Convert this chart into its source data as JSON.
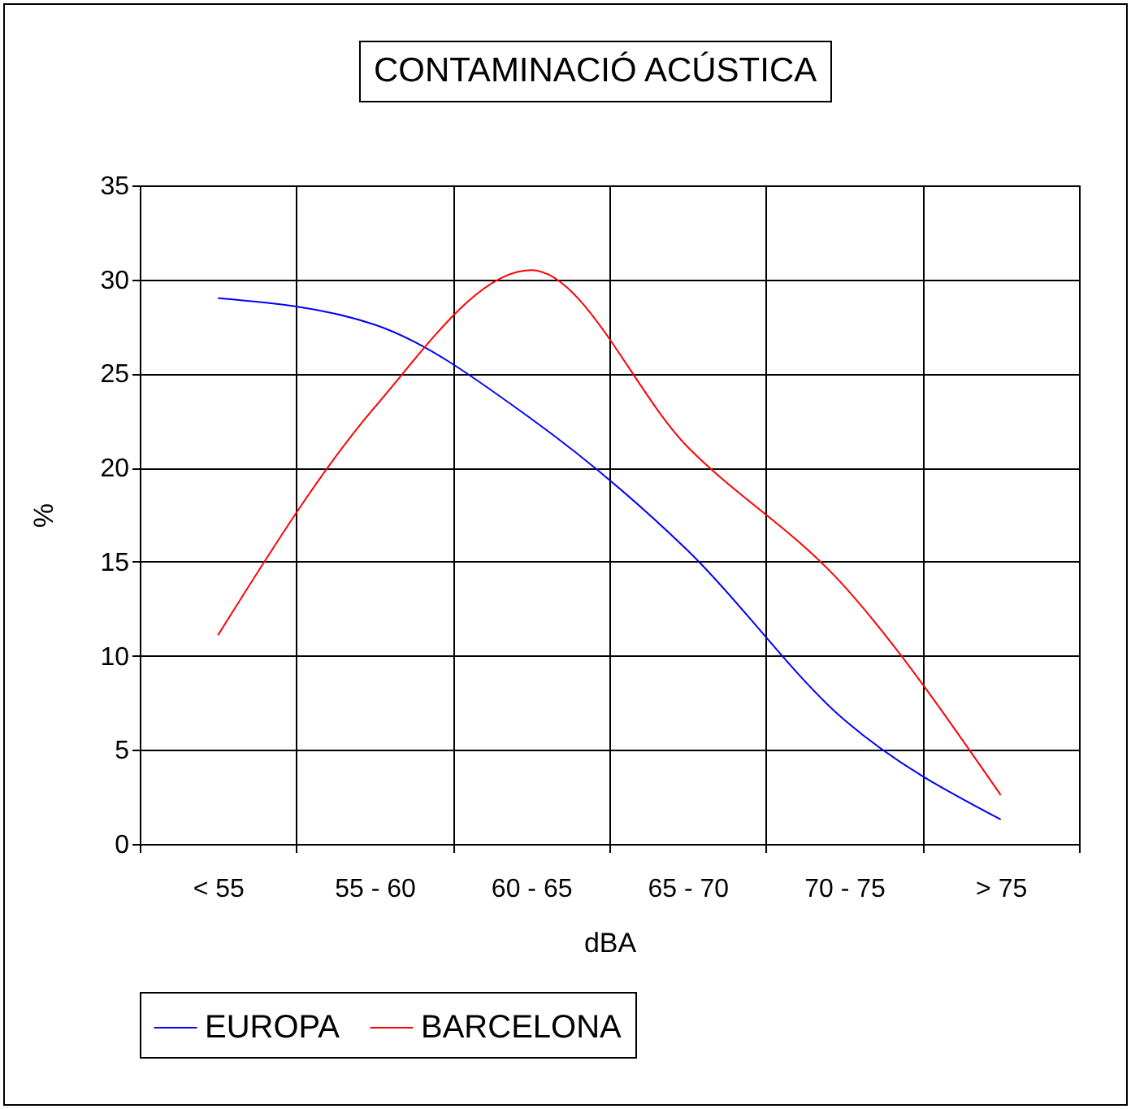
{
  "chart_data": {
    "type": "line",
    "title": "CONTAMINACIÓ ACÚSTICA",
    "xlabel": "dBA",
    "ylabel": "%",
    "categories": [
      "< 55",
      "55 - 60",
      "60 - 65",
      "65 - 70",
      "70 - 75",
      "> 75"
    ],
    "series": [
      {
        "name": "EUROPA",
        "color": "#0000ff",
        "values": [
          29.0,
          27.6,
          22.6,
          15.6,
          6.6,
          1.3
        ]
      },
      {
        "name": "BARCELONA",
        "color": "#ff0000",
        "values": [
          11.1,
          23.2,
          30.5,
          21.1,
          13.7,
          2.6
        ]
      }
    ],
    "ylim": [
      0,
      35
    ],
    "yticks": [
      0,
      5,
      10,
      15,
      20,
      25,
      30,
      35
    ],
    "grid": true,
    "legend": "bottom",
    "marker": "none",
    "line_style": "solid"
  }
}
